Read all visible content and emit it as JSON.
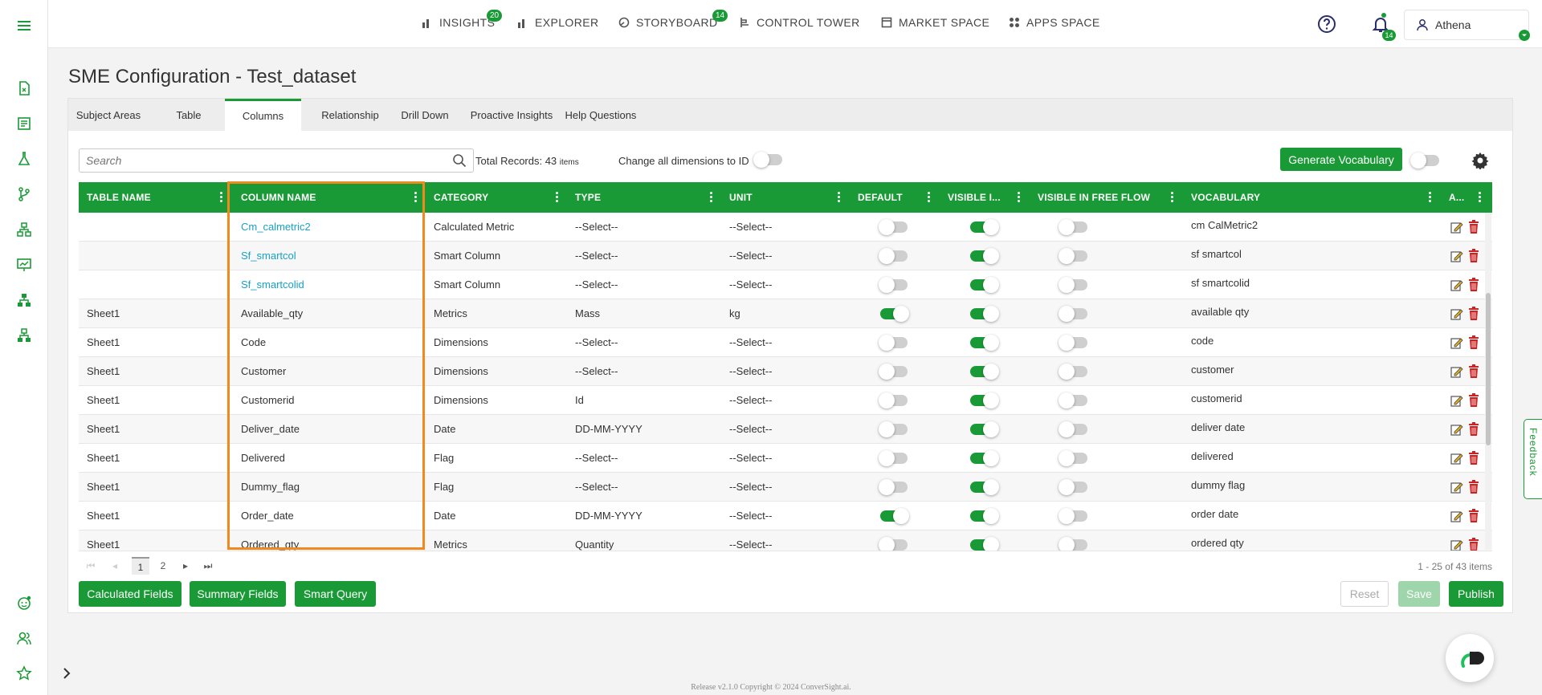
{
  "colors": {
    "brand_green": "#1a9a36",
    "link_blue": "#17a2c4",
    "highlight_orange": "#f08a1c",
    "delete_red": "#cc2222"
  },
  "sidebar": {
    "items": [
      {
        "icon": "menu-icon"
      },
      {
        "icon": "document-icon"
      },
      {
        "icon": "report-icon"
      },
      {
        "icon": "flask-icon"
      },
      {
        "icon": "branch-icon"
      },
      {
        "icon": "hierarchy-icon"
      },
      {
        "icon": "presentation-icon"
      },
      {
        "icon": "org-chart-icon"
      },
      {
        "icon": "network-icon"
      },
      {
        "icon": "bot-icon"
      },
      {
        "icon": "users-icon"
      },
      {
        "icon": "star-icon"
      },
      {
        "icon": "chevron-right-icon"
      }
    ]
  },
  "nav": {
    "items": [
      {
        "label": "INSIGHTS",
        "badge": "20",
        "icon": "bar-chart-icon"
      },
      {
        "label": "EXPLORER",
        "badge": "",
        "icon": "bar-chart-icon"
      },
      {
        "label": "STORYBOARD",
        "badge": "14",
        "icon": "storyboard-icon"
      },
      {
        "label": "CONTROL TOWER",
        "badge": "",
        "icon": "tower-icon"
      },
      {
        "label": "MARKET SPACE",
        "badge": "",
        "icon": "market-icon"
      },
      {
        "label": "APPS SPACE",
        "badge": "",
        "icon": "apps-icon"
      }
    ],
    "notifications_badge": "14",
    "user_name": "Athena"
  },
  "page": {
    "title": "SME Configuration - Test_dataset",
    "tabs": [
      {
        "label": "Subject Areas",
        "active": false
      },
      {
        "label": "Table",
        "active": false
      },
      {
        "label": "Columns",
        "active": true
      },
      {
        "label": "Relationship",
        "active": false
      },
      {
        "label": "Drill Down",
        "active": false
      },
      {
        "label": "Proactive Insights",
        "active": false
      },
      {
        "label": "Help Questions",
        "active": false
      }
    ]
  },
  "toolbar": {
    "search_placeholder": "Search",
    "total_records_label": "Total Records: 43",
    "total_records_unit": "items",
    "change_dims_label": "Change all dimensions to ID",
    "change_dims_on": false,
    "generate_vocab_label": "Generate Vocabulary",
    "generate_vocab_toggle_on": false
  },
  "grid": {
    "columns": [
      "TABLE NAME",
      "COLUMN NAME",
      "CATEGORY",
      "TYPE",
      "UNIT",
      "DEFAULT",
      "VISIBLE I...",
      "VISIBLE IN FREE FLOW",
      "VOCABULARY",
      "A..."
    ],
    "rows": [
      {
        "table": "",
        "column": "Cm_calmetric2",
        "category": "Calculated Metric",
        "type": "--Select--",
        "unit": "--Select--",
        "default": false,
        "visible": true,
        "free_flow": false,
        "vocabulary": "cm CalMetric2",
        "link": true
      },
      {
        "table": "",
        "column": "Sf_smartcol",
        "category": "Smart Column",
        "type": "--Select--",
        "unit": "--Select--",
        "default": false,
        "visible": true,
        "free_flow": false,
        "vocabulary": "sf smartcol",
        "link": true
      },
      {
        "table": "",
        "column": "Sf_smartcolid",
        "category": "Smart Column",
        "type": "--Select--",
        "unit": "--Select--",
        "default": false,
        "visible": true,
        "free_flow": false,
        "vocabulary": "sf smartcolid",
        "link": true
      },
      {
        "table": "Sheet1",
        "column": "Available_qty",
        "category": "Metrics",
        "type": "Mass",
        "unit": "kg",
        "default": true,
        "visible": true,
        "free_flow": false,
        "vocabulary": "available qty",
        "link": false
      },
      {
        "table": "Sheet1",
        "column": "Code",
        "category": "Dimensions",
        "type": "--Select--",
        "unit": "--Select--",
        "default": false,
        "visible": true,
        "free_flow": false,
        "vocabulary": "code",
        "link": false
      },
      {
        "table": "Sheet1",
        "column": "Customer",
        "category": "Dimensions",
        "type": "--Select--",
        "unit": "--Select--",
        "default": false,
        "visible": true,
        "free_flow": false,
        "vocabulary": "customer",
        "link": false
      },
      {
        "table": "Sheet1",
        "column": "Customerid",
        "category": "Dimensions",
        "type": "Id",
        "unit": "--Select--",
        "default": false,
        "visible": true,
        "free_flow": false,
        "vocabulary": "customerid",
        "link": false
      },
      {
        "table": "Sheet1",
        "column": "Deliver_date",
        "category": "Date",
        "type": "DD-MM-YYYY",
        "unit": "--Select--",
        "default": false,
        "visible": true,
        "free_flow": false,
        "vocabulary": "deliver date",
        "link": false
      },
      {
        "table": "Sheet1",
        "column": "Delivered",
        "category": "Flag",
        "type": "--Select--",
        "unit": "--Select--",
        "default": false,
        "visible": true,
        "free_flow": false,
        "vocabulary": "delivered",
        "link": false
      },
      {
        "table": "Sheet1",
        "column": "Dummy_flag",
        "category": "Flag",
        "type": "--Select--",
        "unit": "--Select--",
        "default": false,
        "visible": true,
        "free_flow": false,
        "vocabulary": "dummy flag",
        "link": false
      },
      {
        "table": "Sheet1",
        "column": "Order_date",
        "category": "Date",
        "type": "DD-MM-YYYY",
        "unit": "--Select--",
        "default": true,
        "visible": true,
        "free_flow": false,
        "vocabulary": "order date",
        "link": false
      },
      {
        "table": "Sheet1",
        "column": "Ordered_qty",
        "category": "Metrics",
        "type": "Quantity",
        "unit": "--Select--",
        "default": false,
        "visible": true,
        "free_flow": false,
        "vocabulary": "ordered qty",
        "link": false
      }
    ]
  },
  "pager": {
    "pages": [
      "1",
      "2"
    ],
    "current_page": "1",
    "info": "1 - 25 of 43 items"
  },
  "actions": {
    "calculated_fields": "Calculated Fields",
    "summary_fields": "Summary Fields",
    "smart_query": "Smart Query",
    "reset": "Reset",
    "save": "Save",
    "publish": "Publish"
  },
  "feedback_label": "Feedback",
  "footer_text": "Release v2.1.0 Copyright © 2024 ConverSight.ai."
}
